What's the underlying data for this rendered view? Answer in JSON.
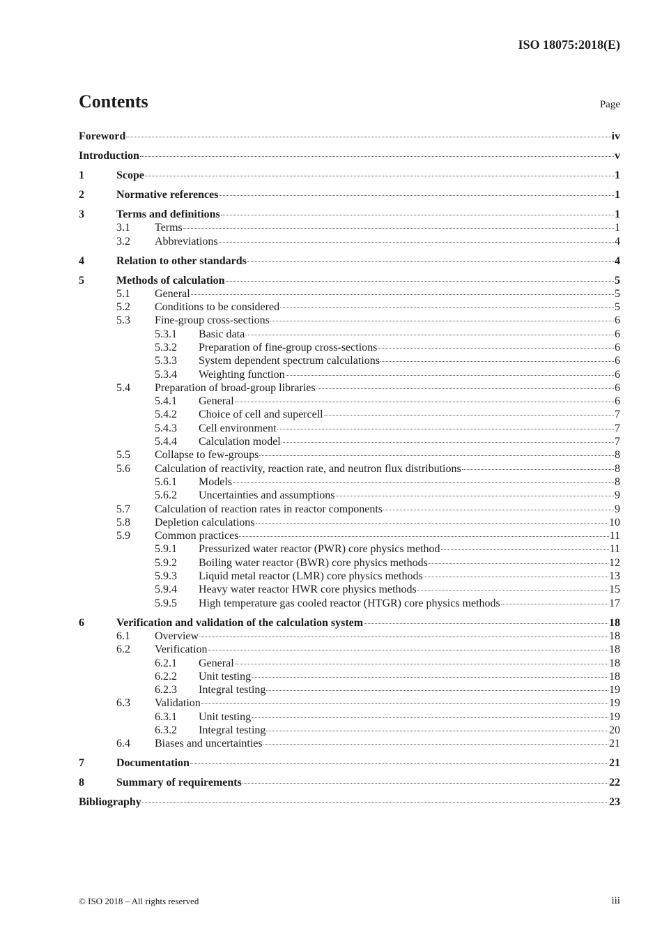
{
  "header": {
    "doc_id": "ISO 18075:2018(E)"
  },
  "title": "Contents",
  "page_label": "Page",
  "entries": [
    {
      "level": 0,
      "num": "",
      "title": "Foreword",
      "page": "iv"
    },
    {
      "level": 0,
      "num": "",
      "title": "Introduction",
      "page": "v"
    },
    {
      "level": 1,
      "num": "1",
      "title": "Scope",
      "page": "1"
    },
    {
      "level": 1,
      "num": "2",
      "title": "Normative references",
      "page": "1"
    },
    {
      "level": 1,
      "num": "3",
      "title": "Terms and definitions",
      "page": "1"
    },
    {
      "level": 2,
      "num": "3.1",
      "title": "Terms",
      "page": "1"
    },
    {
      "level": 2,
      "num": "3.2",
      "title": "Abbreviations",
      "page": "4"
    },
    {
      "level": 1,
      "num": "4",
      "title": "Relation to other standards",
      "page": "4"
    },
    {
      "level": 1,
      "num": "5",
      "title": "Methods of calculation",
      "page": "5"
    },
    {
      "level": 2,
      "num": "5.1",
      "title": "General",
      "page": "5"
    },
    {
      "level": 2,
      "num": "5.2",
      "title": "Conditions to be considered",
      "page": "5"
    },
    {
      "level": 2,
      "num": "5.3",
      "title": "Fine-group cross-sections",
      "page": "6"
    },
    {
      "level": 3,
      "num": "5.3.1",
      "title": "Basic data",
      "page": "6"
    },
    {
      "level": 3,
      "num": "5.3.2",
      "title": "Preparation of fine-group cross-sections",
      "page": "6"
    },
    {
      "level": 3,
      "num": "5.3.3",
      "title": "System dependent spectrum calculations",
      "page": "6"
    },
    {
      "level": 3,
      "num": "5.3.4",
      "title": "Weighting function",
      "page": "6"
    },
    {
      "level": 2,
      "num": "5.4",
      "title": "Preparation of broad-group libraries",
      "page": "6"
    },
    {
      "level": 3,
      "num": "5.4.1",
      "title": "General",
      "page": "6"
    },
    {
      "level": 3,
      "num": "5.4.2",
      "title": "Choice of cell and supercell",
      "page": "7"
    },
    {
      "level": 3,
      "num": "5.4.3",
      "title": "Cell environment",
      "page": "7"
    },
    {
      "level": 3,
      "num": "5.4.4",
      "title": "Calculation model",
      "page": "7"
    },
    {
      "level": 2,
      "num": "5.5",
      "title": "Collapse to few-groups",
      "page": "8"
    },
    {
      "level": 2,
      "num": "5.6",
      "title": "Calculation of reactivity, reaction rate, and neutron flux distributions",
      "page": "8"
    },
    {
      "level": 3,
      "num": "5.6.1",
      "title": "Models",
      "page": "8"
    },
    {
      "level": 3,
      "num": "5.6.2",
      "title": "Uncertainties and assumptions",
      "page": "9"
    },
    {
      "level": 2,
      "num": "5.7",
      "title": "Calculation of reaction rates in reactor components",
      "page": "9"
    },
    {
      "level": 2,
      "num": "5.8",
      "title": "Depletion calculations",
      "page": "10"
    },
    {
      "level": 2,
      "num": "5.9",
      "title": "Common practices",
      "page": "11"
    },
    {
      "level": 3,
      "num": "5.9.1",
      "title": "Pressurized water reactor (PWR) core physics method",
      "page": "11"
    },
    {
      "level": 3,
      "num": "5.9.2",
      "title": "Boiling water reactor (BWR) core physics methods",
      "page": "12"
    },
    {
      "level": 3,
      "num": "5.9.3",
      "title": "Liquid metal reactor (LMR) core physics methods",
      "page": "13"
    },
    {
      "level": 3,
      "num": "5.9.4",
      "title": "Heavy water reactor HWR core physics methods",
      "page": "15"
    },
    {
      "level": 3,
      "num": "5.9.5",
      "title": "High temperature gas cooled reactor (HTGR) core physics methods",
      "page": "17"
    },
    {
      "level": 1,
      "num": "6",
      "title": "Verification and validation of the calculation system",
      "page": "18"
    },
    {
      "level": 2,
      "num": "6.1",
      "title": "Overview",
      "page": "18"
    },
    {
      "level": 2,
      "num": "6.2",
      "title": "Verification",
      "page": "18"
    },
    {
      "level": 3,
      "num": "6.2.1",
      "title": "General",
      "page": "18"
    },
    {
      "level": 3,
      "num": "6.2.2",
      "title": "Unit testing",
      "page": "18"
    },
    {
      "level": 3,
      "num": "6.2.3",
      "title": "Integral testing",
      "page": "19"
    },
    {
      "level": 2,
      "num": "6.3",
      "title": "Validation",
      "page": "19"
    },
    {
      "level": 3,
      "num": "6.3.1",
      "title": "Unit testing",
      "page": "19"
    },
    {
      "level": 3,
      "num": "6.3.2",
      "title": "Integral testing",
      "page": "20"
    },
    {
      "level": 2,
      "num": "6.4",
      "title": "Biases and uncertainties",
      "page": "21"
    },
    {
      "level": 1,
      "num": "7",
      "title": "Documentation",
      "page": "21"
    },
    {
      "level": 1,
      "num": "8",
      "title": "Summary of requirements",
      "page": "22"
    },
    {
      "level": 0,
      "num": "",
      "title": "Bibliography",
      "page": "23"
    }
  ],
  "footer": {
    "copyright": "© ISO 2018 – All rights reserved",
    "page": "iii"
  }
}
